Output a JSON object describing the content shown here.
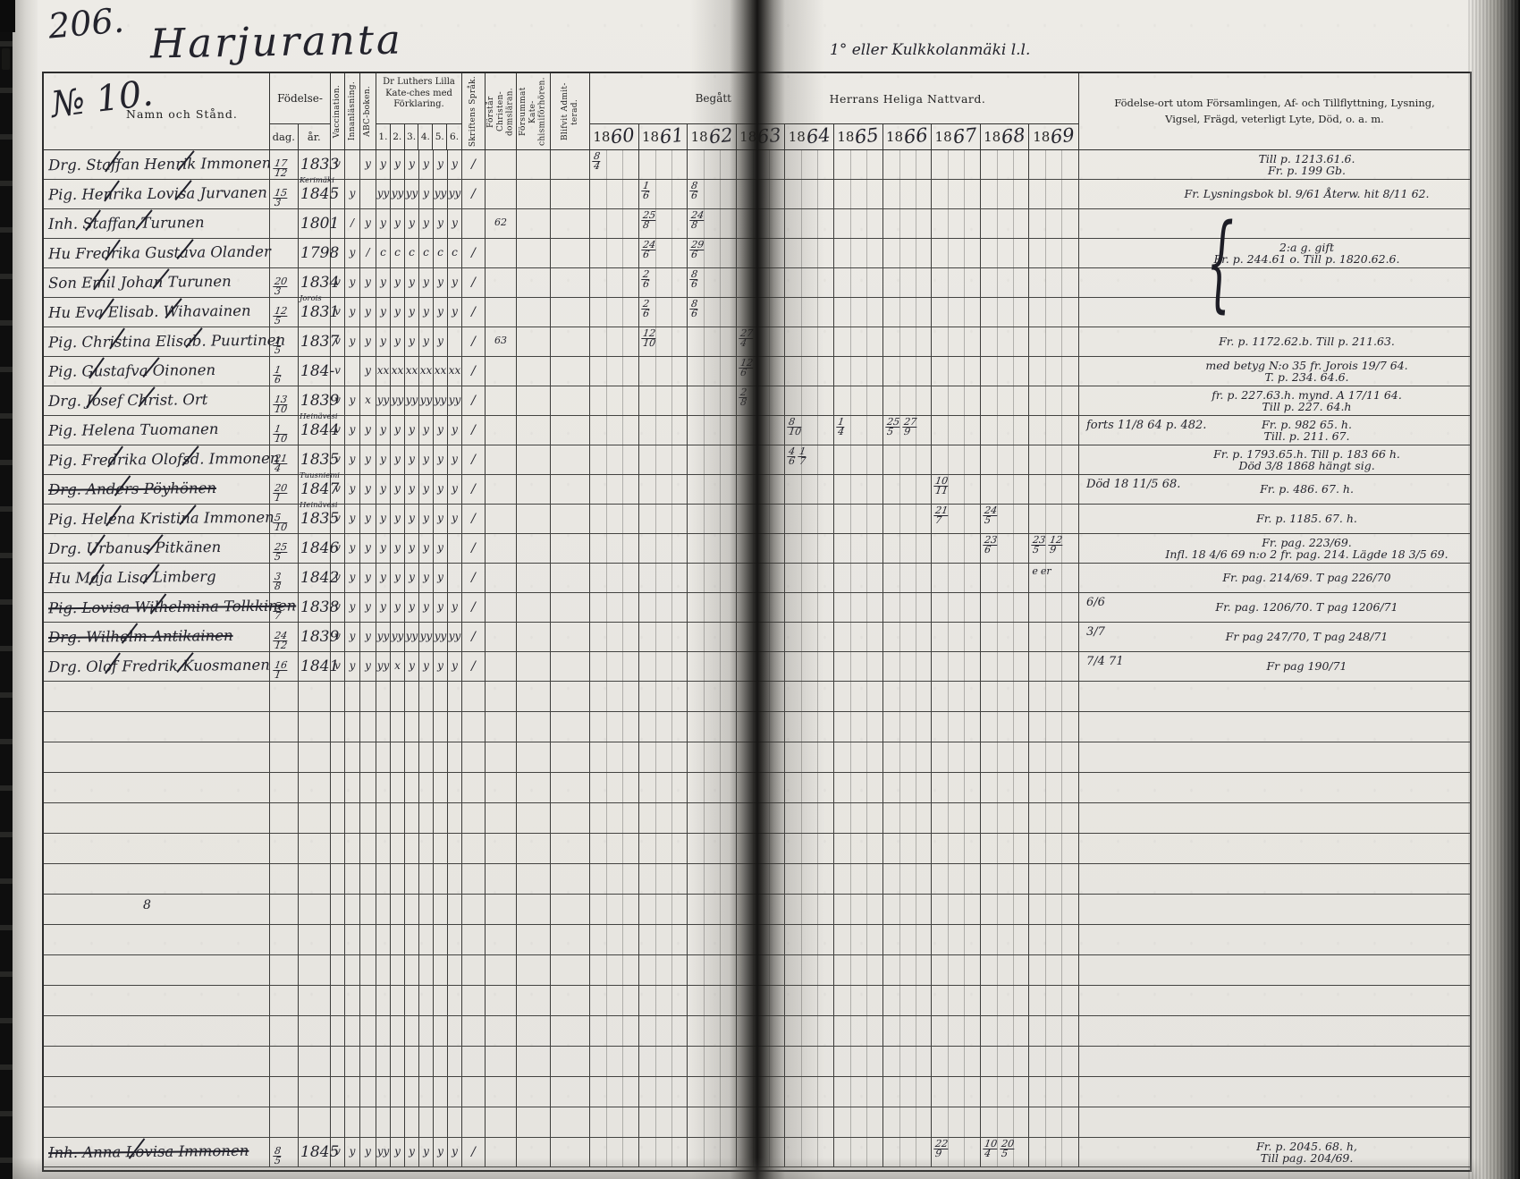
{
  "page": {
    "number": "206.",
    "title": "Harjuranta",
    "right_title": "1° eller Kulkkolanmäki l.l."
  },
  "header": {
    "no_label": "№ 10.",
    "namn": "Namn och Stånd.",
    "fodelse": "Födelse-",
    "dag": "dag.",
    "ar": "år.",
    "vaccination": "Vaccination.",
    "innanlasning": "Innanläsning.",
    "abc": "ABC-boken.",
    "kateches": "Dr Luthers Lilla Kate-ches med Förklaring.",
    "kateches_cols": [
      "1.",
      "2.",
      "3.",
      "4.",
      "5.",
      "6."
    ],
    "skriftens": "Skriftens Språk.",
    "forstar": "Förstår Christen-domsläran.",
    "forsummat": "Försummat Kate-chismiförhören.",
    "blifvit": "Blifvit Admit-terad.",
    "begatt": "Begått",
    "nattvard": "Herrans Heliga Nattvard.",
    "years": [
      {
        "printed": "18",
        "written": "60"
      },
      {
        "printed": "18",
        "written": "61"
      },
      {
        "printed": "18",
        "written": "62"
      },
      {
        "printed": "18",
        "written": "63"
      },
      {
        "printed": "18",
        "written": "64"
      },
      {
        "printed": "18",
        "written": "65"
      },
      {
        "printed": "18",
        "written": "66"
      },
      {
        "printed": "18",
        "written": "67"
      },
      {
        "printed": "18",
        "written": "68"
      },
      {
        "printed": "18",
        "written": "69"
      }
    ],
    "right_col": "Födelse-ort utom Församlingen, Af- och Tillflyttning, Lysning, Vigsel, Frägd, veterligt Lyte, Död, o. a. m."
  },
  "table": {
    "blank_rows": 15,
    "rows": [
      {
        "name": "Drg. Staffan Henrik Immonen",
        "struck": "slash",
        "dag": "17/12",
        "ar": "1833",
        "note": "",
        "marks": [
          "v",
          "",
          "y",
          "y",
          "y",
          "y",
          "y",
          "y",
          "y"
        ],
        "skrift": "/",
        "christ": "",
        "years": {
          "0": "8/4"
        },
        "ann_left": "",
        "ann": [
          "Till p. 1213.61.6.",
          "Fr. p. 199 Gb."
        ]
      },
      {
        "name": "Pig. Henrika Lovisa Jurvanen",
        "struck": "slash",
        "dag": "15/3",
        "ar": "1845",
        "note": "Kerimäki",
        "marks": [
          "",
          "y",
          "",
          "yy",
          "yy",
          "yy",
          "y",
          "yy",
          "yy"
        ],
        "skrift": "/",
        "christ": "",
        "years": {
          "1": "1/6",
          "2": "8/6"
        },
        "ann_left": "",
        "ann": [
          "Fr. Lysningsbok bl. 9/61 Återw. hit 8/11 62."
        ]
      },
      {
        "name": "Inh. Staffan Turunen",
        "struck": "slash",
        "dag": "",
        "ar": "1801",
        "note": "",
        "marks": [
          "",
          "/",
          "y",
          "y",
          "y",
          "y",
          "y",
          "y",
          "y"
        ],
        "skrift": "",
        "christ": "62",
        "years": {
          "1": "25/8",
          "2": "24/8"
        },
        "ann_left": "",
        "ann": []
      },
      {
        "name": "Hu Fredrika Gustava Olander",
        "struck": "slash",
        "dag": "",
        "ar": "1798",
        "note": "",
        "marks": [
          "",
          "y",
          "/",
          "c",
          "c",
          "c",
          "c",
          "c",
          "c"
        ],
        "skrift": "/",
        "christ": "",
        "years": {
          "1": "24/6",
          "2": "29/6"
        },
        "ann_left": "",
        "ann": [
          "2:a g. gift",
          "Fr. p. 244.61 o. Till p. 1820.62.6."
        ]
      },
      {
        "name": "Son Emil Johan Turunen",
        "struck": "slash",
        "dag": "20/3",
        "ar": "1834",
        "note": "",
        "marks": [
          "v",
          "y",
          "y",
          "y",
          "y",
          "y",
          "y",
          "y",
          "y"
        ],
        "skrift": "/",
        "christ": "",
        "years": {
          "1": "2/6",
          "2": "8/6"
        },
        "ann_left": "",
        "ann": []
      },
      {
        "name": "Hu Eva Elisab. Wihavainen",
        "struck": "slash",
        "dag": "12/5",
        "ar": "1831",
        "note": "Jorois",
        "marks": [
          "v",
          "y",
          "y",
          "y",
          "y",
          "y",
          "y",
          "y",
          "y"
        ],
        "skrift": "/",
        "christ": "",
        "years": {
          "1": "2/6",
          "2": "8/6"
        },
        "ann_left": "",
        "ann": []
      },
      {
        "name": "Pig. Christina Elisab. Puurtinen",
        "struck": "slash",
        "dag": "1/5",
        "ar": "1837",
        "note": "",
        "marks": [
          "v",
          "y",
          "y",
          "y",
          "y",
          "y",
          "y",
          "y",
          ""
        ],
        "skrift": "/",
        "christ": "63",
        "years": {
          "1": "12/10",
          "3": "27/4"
        },
        "ann_left": "",
        "ann": [
          "Fr. p. 1172.62.b. Till p. 211.63."
        ]
      },
      {
        "name": "Pig. Gustafva Oinonen",
        "struck": "slash",
        "dag": "1/6",
        "ar": "184-",
        "note": "",
        "marks": [
          "v",
          "",
          "y",
          "xx",
          "xx",
          "xx",
          "xx",
          "xx",
          "xx"
        ],
        "skrift": "/",
        "christ": "",
        "years": {
          "3": "12/6"
        },
        "ann_left": "",
        "ann": [
          "med betyg N:o 35 fr. Jorois 19/7 64.",
          "T. p. 234. 64.6."
        ]
      },
      {
        "name": "Drg. Josef Christ. Ort",
        "struck": "slash",
        "dag": "13/10",
        "ar": "1839",
        "note": "",
        "marks": [
          "v",
          "y",
          "x",
          "yy",
          "yy",
          "yy",
          "yy",
          "yy",
          "yy"
        ],
        "skrift": "/",
        "christ": "",
        "years": {
          "3": "2/8"
        },
        "ann_left": "",
        "ann": [
          "fr. p. 227.63.h. mynd. A 17/11 64.",
          "Till p. 227. 64.h"
        ]
      },
      {
        "name": "Pig. Helena Tuomanen",
        "struck": "",
        "dag": "1/10",
        "ar": "1844",
        "note": "Heinävesi",
        "marks": [
          "v",
          "y",
          "y",
          "y",
          "y",
          "y",
          "y",
          "y",
          "y"
        ],
        "skrift": "/",
        "christ": "",
        "years": {
          "4": "8/10",
          "5": "1/4",
          "6": "25/5 27/9"
        },
        "ann_left": "forts 11/8 64 p. 482.",
        "ann": [
          "Fr. p. 982 65. h.",
          "Till. p. 211. 67."
        ]
      },
      {
        "name": "Pig. Fredrika Olofsd. Immonen",
        "struck": "slash",
        "dag": "21/4",
        "ar": "1835",
        "note": "",
        "marks": [
          "v",
          "y",
          "y",
          "y",
          "y",
          "y",
          "y",
          "y",
          "y"
        ],
        "skrift": "/",
        "christ": "",
        "years": {
          "4": "4/6 1/7"
        },
        "ann_left": "",
        "ann": [
          "Fr. p. 1793.65.h. Till p. 183 66 h.",
          "Död 3/8 1868 hängt sig."
        ]
      },
      {
        "name": "Drg. Anders Pöyhönen",
        "struck": "strike",
        "dag": "20/1",
        "ar": "1847",
        "note": "Tuusniemi",
        "marks": [
          "v",
          "y",
          "y",
          "y",
          "y",
          "y",
          "y",
          "y",
          "y"
        ],
        "skrift": "/",
        "christ": "",
        "years": {
          "7": "10/11"
        },
        "ann_left": "Död 18 11/5 68.",
        "ann": [
          "Fr. p. 486. 67. h."
        ]
      },
      {
        "name": "Pig. Helena Kristina Immonen",
        "struck": "slash",
        "dag": "5/10",
        "ar": "1835",
        "note": "Heinävesi",
        "marks": [
          "v",
          "y",
          "y",
          "y",
          "y",
          "y",
          "y",
          "y",
          "y"
        ],
        "skrift": "/",
        "christ": "",
        "years": {
          "7": "21/7",
          "8": "24/5"
        },
        "ann_left": "",
        "ann": [
          "Fr. p. 1185. 67. h."
        ]
      },
      {
        "name": "Drg. Urbanus Pitkänen",
        "struck": "slash",
        "dag": "25/5",
        "ar": "1846",
        "note": "",
        "marks": [
          "v",
          "y",
          "y",
          "y",
          "y",
          "y",
          "y",
          "y",
          ""
        ],
        "skrift": "/",
        "christ": "",
        "years": {
          "8": "23/6",
          "9": "23/5 12/9"
        },
        "ann_left": "",
        "ann": [
          "Fr. pag. 223/69.",
          "Infl. 18 4/6 69 n:o 2 fr. pag. 214. Lägde 18 3/5 69."
        ]
      },
      {
        "name": "Hu Maja Lisa Limberg",
        "struck": "slash",
        "dag": "3/8",
        "ar": "1842",
        "note": "",
        "marks": [
          "v",
          "y",
          "y",
          "y",
          "y",
          "y",
          "y",
          "y",
          ""
        ],
        "skrift": "/",
        "christ": "",
        "years": {
          "9": "e er"
        },
        "ann_left": "",
        "ann": [
          "Fr. pag. 214/69. T pag 226/70"
        ]
      },
      {
        "name": "Pig. Lovisa Wilhelmina Tolkkinen",
        "struck": "strike",
        "dag": "5/7",
        "ar": "1838",
        "note": "",
        "marks": [
          "v",
          "y",
          "y",
          "y",
          "y",
          "y",
          "y",
          "y",
          "y"
        ],
        "skrift": "/",
        "christ": "",
        "years": {},
        "ann_left": "6/6",
        "ann": [
          "Fr. pag. 1206/70. T pag 1206/71"
        ]
      },
      {
        "name": "Drg. Wilhelm Antikainen",
        "struck": "strike",
        "dag": "24/12",
        "ar": "1839",
        "note": "",
        "marks": [
          "v",
          "y",
          "y",
          "yy",
          "yy",
          "yy",
          "yy",
          "yy",
          "yy"
        ],
        "skrift": "/",
        "christ": "",
        "years": {},
        "ann_left": "3/7",
        "ann": [
          "Fr pag 247/70, T pag 248/71"
        ]
      },
      {
        "name": "Drg. Olof Fredrik Kuosmanen",
        "struck": "slash",
        "dag": "16/1",
        "ar": "1841",
        "note": "",
        "marks": [
          "v",
          "y",
          "y",
          "yy",
          "x",
          "y",
          "y",
          "y",
          "y"
        ],
        "skrift": "/",
        "christ": "",
        "years": {},
        "ann_left": "7/4 71",
        "ann": [
          "Fr pag 190/71"
        ]
      },
      {
        "name": "Inh. Anna Lovisa Immonen",
        "struck": "strike",
        "dag": "8/5",
        "ar": "1845",
        "note": "",
        "marks": [
          "v",
          "y",
          "y",
          "yy",
          "y",
          "y",
          "y",
          "y",
          "y"
        ],
        "skrift": "/",
        "christ": "",
        "years": {
          "7": "22/9",
          "8": "10/4 20/5"
        },
        "ann_left": "",
        "ann": [
          "Fr. p. 2045. 68. h,",
          "Till pag. 204/69."
        ]
      }
    ]
  },
  "decor": {
    "brace": "{",
    "stray_mark": "8"
  }
}
